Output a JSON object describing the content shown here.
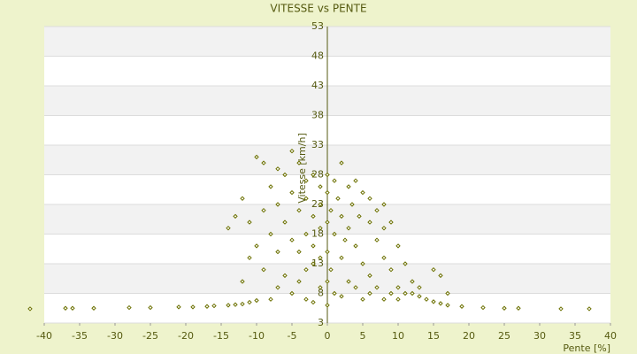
{
  "chart_data": {
    "type": "scatter",
    "title": "VITESSE vs PENTE",
    "x_label": "Pente [%]",
    "y_label": "Vitesse [km/h]",
    "xlim": [
      -40,
      40
    ],
    "xticks": [
      -40,
      -35,
      -30,
      -25,
      -20,
      -15,
      -10,
      -5,
      0,
      5,
      10,
      15,
      20,
      25,
      30,
      35,
      40
    ],
    "ylim": [
      3,
      53
    ],
    "yticks": [
      3,
      8,
      13,
      18,
      23,
      28,
      33,
      38,
      43,
      48,
      53
    ],
    "grid": true,
    "color": "#6b7000",
    "x": [
      -42,
      -37,
      -36,
      -33,
      -28,
      -25,
      -21,
      -19,
      -17,
      -16,
      -14,
      -13,
      -12,
      -11,
      -10,
      22,
      25,
      27,
      33,
      37,
      19,
      17,
      16,
      15,
      14,
      13,
      12,
      -10,
      -9,
      -7,
      -5,
      -6,
      -4,
      -8,
      -3,
      -2,
      -12,
      -14,
      -13,
      -11,
      -9,
      -7,
      -5,
      -4,
      -3,
      -2,
      -1,
      -1,
      -6,
      -8,
      -10,
      -7,
      -5,
      -4,
      -3,
      -2,
      -1,
      -9,
      -6,
      -4,
      -3,
      -2,
      -1,
      -5,
      -7,
      -3,
      -1,
      -2,
      -8,
      -11,
      -12,
      0,
      0,
      0,
      0,
      0,
      0,
      0.5,
      0.5,
      1,
      1,
      1,
      1.5,
      2,
      2,
      2,
      2.5,
      3,
      3,
      3,
      3.5,
      4,
      4,
      4.5,
      5,
      5,
      5,
      6,
      6,
      6,
      7,
      7,
      7,
      8,
      8,
      8,
      9,
      9,
      10,
      10,
      10,
      11,
      11,
      12,
      13,
      15,
      16,
      17,
      4,
      2,
      6,
      8,
      9
    ],
    "y": [
      5.4,
      5.5,
      5.5,
      5.5,
      5.6,
      5.6,
      5.7,
      5.7,
      5.8,
      5.9,
      6,
      6.1,
      6.2,
      6.5,
      6.8,
      5.6,
      5.5,
      5.5,
      5.4,
      5.4,
      5.8,
      6,
      6.3,
      6.6,
      7,
      7.5,
      8,
      31,
      30,
      29,
      32,
      28,
      30,
      26,
      27,
      28,
      24,
      19,
      21,
      20,
      22,
      23,
      25,
      22,
      24,
      21,
      26,
      23,
      20,
      18,
      16,
      15,
      17,
      15,
      18,
      16,
      19,
      12,
      11,
      10,
      12,
      13,
      14,
      8,
      9,
      7,
      9,
      6.5,
      7,
      14,
      10,
      6,
      10,
      15,
      20,
      25,
      28,
      22,
      12,
      27,
      18,
      8,
      24,
      21,
      14,
      7.5,
      17,
      26,
      19,
      10,
      23,
      16,
      9,
      21,
      25,
      13,
      7,
      20,
      11,
      8,
      17,
      9,
      22,
      14,
      7,
      19,
      12,
      8,
      16,
      9,
      7,
      13,
      8,
      10,
      9,
      12,
      11,
      8,
      27,
      30,
      24,
      23,
      20
    ]
  }
}
